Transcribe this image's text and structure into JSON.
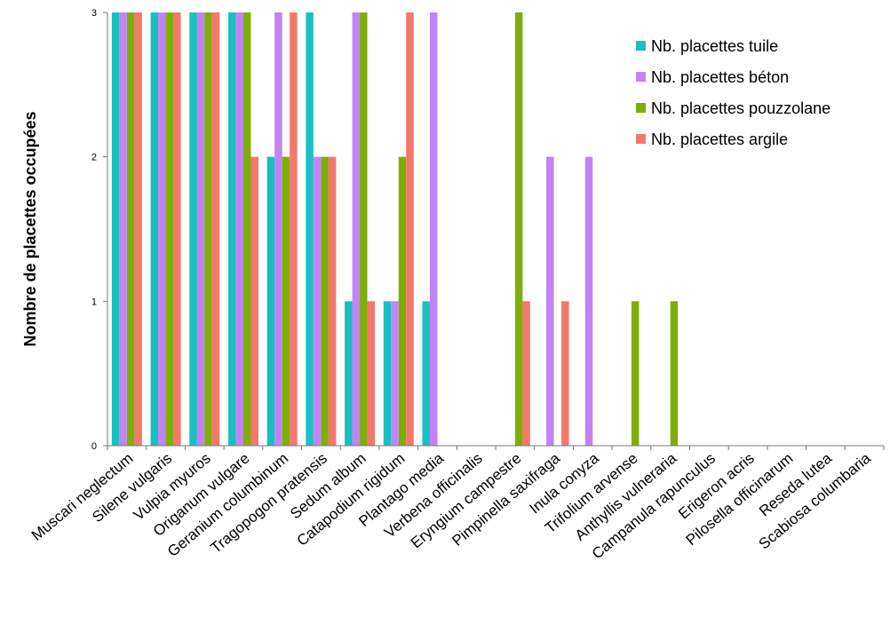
{
  "chart_data": {
    "type": "bar",
    "title": "",
    "xlabel": "",
    "ylabel": "Nombre de placettes occupées",
    "ylim": [
      0,
      3
    ],
    "yticks": [
      0,
      1,
      2,
      3
    ],
    "grid": false,
    "legend_position": "top-right",
    "categories": [
      "Muscari neglectum",
      "Silene vulgaris",
      "Vulpia myuros",
      "Origanum vulgare",
      "Geranium columbinum",
      "Tragopogon pratensis",
      "Sedum album",
      "Catapodium rigidum",
      "Plantago media",
      "Verbena officinalis",
      "Eryngium campestre",
      "Pimpinella saxifraga",
      "Inula conyza",
      "Trifolium arvense",
      "Anthyllis vulneraria",
      "Campanula rapunculus",
      "Erigeron acris",
      "Pilosella officinarum",
      "Reseda lutea",
      "Scabiosa columbaria"
    ],
    "series": [
      {
        "name": "Nb. placettes tuile",
        "color": "#1ABFBF",
        "values": [
          3,
          3,
          3,
          3,
          2,
          3,
          1,
          1,
          1,
          0,
          0,
          0,
          0,
          0,
          0,
          0,
          0,
          0,
          0,
          0
        ]
      },
      {
        "name": "Nb. placettes béton",
        "color": "#C184F4",
        "values": [
          3,
          3,
          3,
          3,
          3,
          2,
          3,
          1,
          3,
          0,
          0,
          2,
          2,
          0,
          0,
          0,
          0,
          0,
          0,
          0
        ]
      },
      {
        "name": "Nb. placettes pouzzolane",
        "color": "#7FAE0A",
        "values": [
          3,
          3,
          3,
          3,
          2,
          2,
          3,
          2,
          0,
          0,
          3,
          0,
          0,
          1,
          1,
          0,
          0,
          0,
          0,
          0
        ]
      },
      {
        "name": "Nb. placettes argile",
        "color": "#F4786C",
        "values": [
          3,
          3,
          3,
          2,
          3,
          2,
          1,
          3,
          0,
          0,
          1,
          1,
          0,
          0,
          0,
          0,
          0,
          0,
          0,
          0
        ]
      }
    ]
  }
}
